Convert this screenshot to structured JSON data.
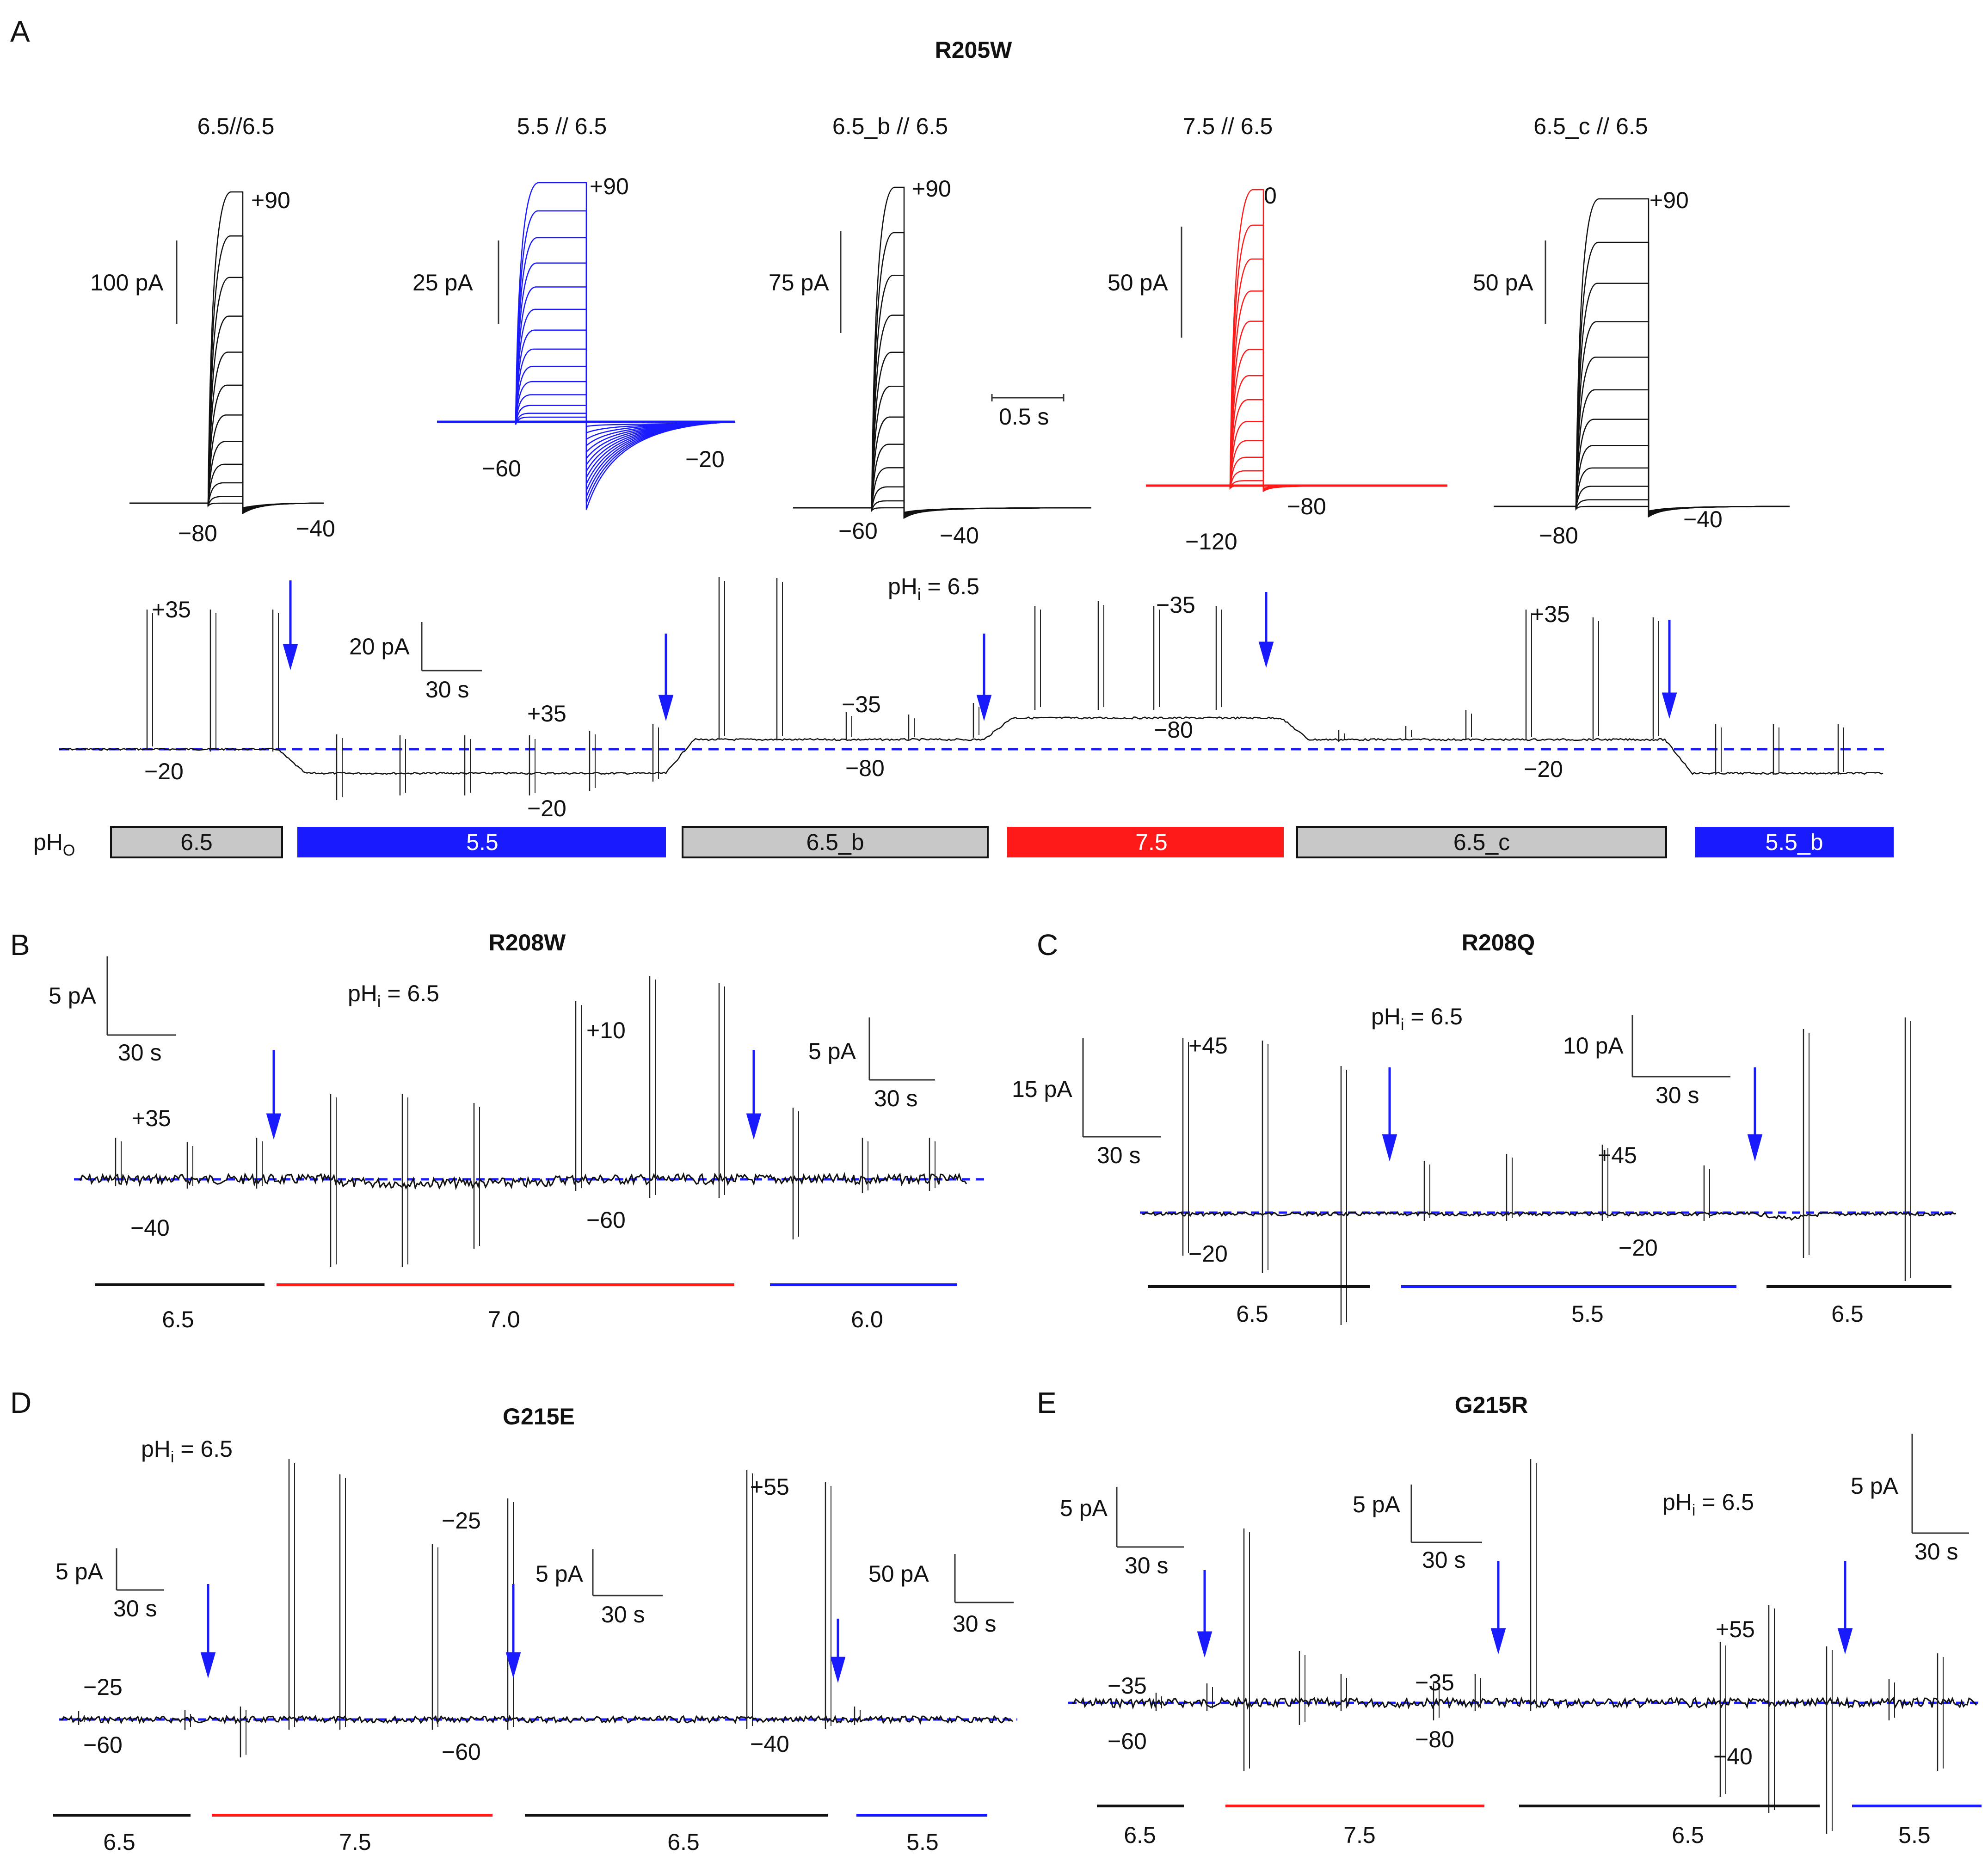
{
  "colors": {
    "trace": "#111111",
    "blue": "#1a1aff",
    "red": "#ff1a1a",
    "gray_bar": "#c8c8c8",
    "baseline": "#1a1aff"
  },
  "chart_data": [
    {
      "panel": "A",
      "type": "line",
      "title": "R205W",
      "description_kind": "current families",
      "families": [
        {
          "label": "6.5//6.5",
          "scale": "100 pA",
          "top_voltage": "+90",
          "hold_voltage": "−80",
          "tail_voltage": "−40",
          "color": "black"
        },
        {
          "label": "5.5 // 6.5",
          "scale": "25 pA",
          "top_voltage": "+90",
          "hold_voltage": "−60",
          "tail_voltage": "−20",
          "color": "blue"
        },
        {
          "label": "6.5_b // 6.5",
          "scale": "75 pA",
          "top_voltage": "+90",
          "hold_voltage": "−60",
          "tail_voltage": "−40",
          "color": "black"
        },
        {
          "label": "7.5 // 6.5",
          "scale": "50 pA",
          "top_voltage": "0",
          "hold_voltage": "−120",
          "tail_voltage": "−80",
          "color": "red"
        },
        {
          "label": "6.5_c // 6.5",
          "scale": "50 pA",
          "top_voltage": "+90",
          "hold_voltage": "−80",
          "tail_voltage": "−40",
          "color": "black"
        }
      ],
      "time_scale": "0.5 s",
      "timecourse": {
        "pHi_label": "pH",
        "pHi_sub": "i",
        "pHi_value": " = 6.5",
        "scale_current": "20 pA",
        "scale_time": "30 s",
        "annotations": [
          "+35",
          "−20",
          "+35",
          "−20",
          "−35",
          "−80",
          "−35",
          "−80",
          "+35",
          "−20"
        ],
        "pHo_label": "pH",
        "pHo_sub": "O",
        "segments": [
          {
            "label": "6.5",
            "color": "gray"
          },
          {
            "label": "5.5",
            "color": "blue"
          },
          {
            "label": "6.5_b",
            "color": "gray"
          },
          {
            "label": "7.5",
            "color": "red"
          },
          {
            "label": "6.5_c",
            "color": "gray"
          },
          {
            "label": "5.5_b",
            "color": "blue"
          }
        ],
        "relative_levels": [
          0,
          -1.0,
          0.4,
          1.3,
          0.4,
          -1.0
        ]
      }
    },
    {
      "panel": "B",
      "type": "line",
      "title": "R208W",
      "pHi_label": "pH",
      "pHi_sub": "i",
      "pHi_value": " = 6.5",
      "scale_bars": [
        {
          "current": "5 pA",
          "time": "30 s"
        },
        {
          "current": "5 pA",
          "time": "30 s"
        }
      ],
      "annotations": [
        "+35",
        "−40",
        "+10",
        "−60"
      ],
      "segments": [
        {
          "label": "6.5",
          "color": "black"
        },
        {
          "label": "7.0",
          "color": "red"
        },
        {
          "label": "6.0",
          "color": "blue"
        }
      ]
    },
    {
      "panel": "C",
      "type": "line",
      "title": "R208Q",
      "pHi_label": "pH",
      "pHi_sub": "i",
      "pHi_value": " = 6.5",
      "scale_bars": [
        {
          "current": "15 pA",
          "time": "30 s"
        },
        {
          "current": "10 pA",
          "time": "30 s"
        }
      ],
      "annotations": [
        "+45",
        "−20",
        "+45",
        "−20"
      ],
      "segments": [
        {
          "label": "6.5",
          "color": "black"
        },
        {
          "label": "5.5",
          "color": "blue"
        },
        {
          "label": "6.5",
          "color": "black"
        }
      ]
    },
    {
      "panel": "D",
      "type": "line",
      "title": "G215E",
      "pHi_label": "pH",
      "pHi_sub": "i",
      "pHi_value": " = 6.5",
      "scale_bars": [
        {
          "current": "5 pA",
          "time": "30 s"
        },
        {
          "current": "5 pA",
          "time": "30 s"
        },
        {
          "current": "50 pA",
          "time": "30 s"
        }
      ],
      "annotations": [
        "−25",
        "−60",
        "−25",
        "−60",
        "+55",
        "−40"
      ],
      "segments": [
        {
          "label": "6.5",
          "color": "black"
        },
        {
          "label": "7.5",
          "color": "red"
        },
        {
          "label": "6.5",
          "color": "black"
        },
        {
          "label": "5.5",
          "color": "blue"
        }
      ]
    },
    {
      "panel": "E",
      "type": "line",
      "title": "G215R",
      "pHi_label": "pH",
      "pHi_sub": "i",
      "pHi_value": " = 6.5",
      "scale_bars": [
        {
          "current": "5 pA",
          "time": "30 s"
        },
        {
          "current": "5 pA",
          "time": "30 s"
        },
        {
          "current": "5 pA",
          "time": "30 s"
        }
      ],
      "annotations": [
        "−35",
        "−60",
        "−35",
        "−80",
        "+55",
        "−40"
      ],
      "segments": [
        {
          "label": "6.5",
          "color": "black"
        },
        {
          "label": "7.5",
          "color": "red"
        },
        {
          "label": "6.5",
          "color": "black"
        },
        {
          "label": "5.5",
          "color": "blue"
        }
      ]
    }
  ]
}
